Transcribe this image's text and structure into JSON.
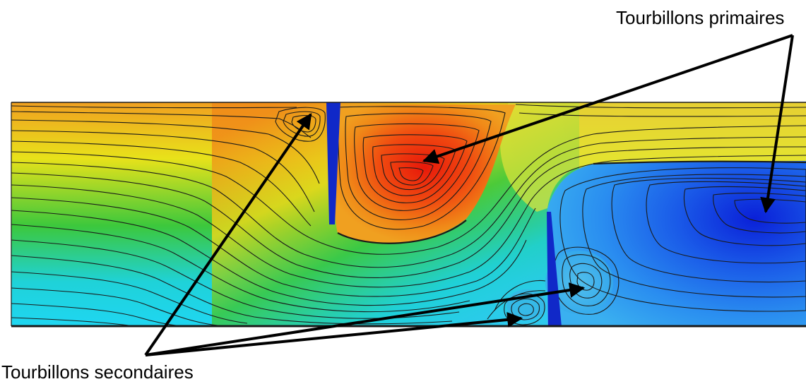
{
  "annotations": {
    "primary": "Tourbillons primaires",
    "secondary": "Tourbillons secondaires"
  },
  "colors": {
    "field_low": "#0a2bd6",
    "field_mid_low": "#1fd0f0",
    "field_mid": "#39c83a",
    "field_mid_high": "#e8e21a",
    "field_high": "#f07a10",
    "field_peak": "#e81c0c",
    "baffle": "#1028c8",
    "streamline": "#1a1a1a",
    "arrow": "#000000"
  }
}
